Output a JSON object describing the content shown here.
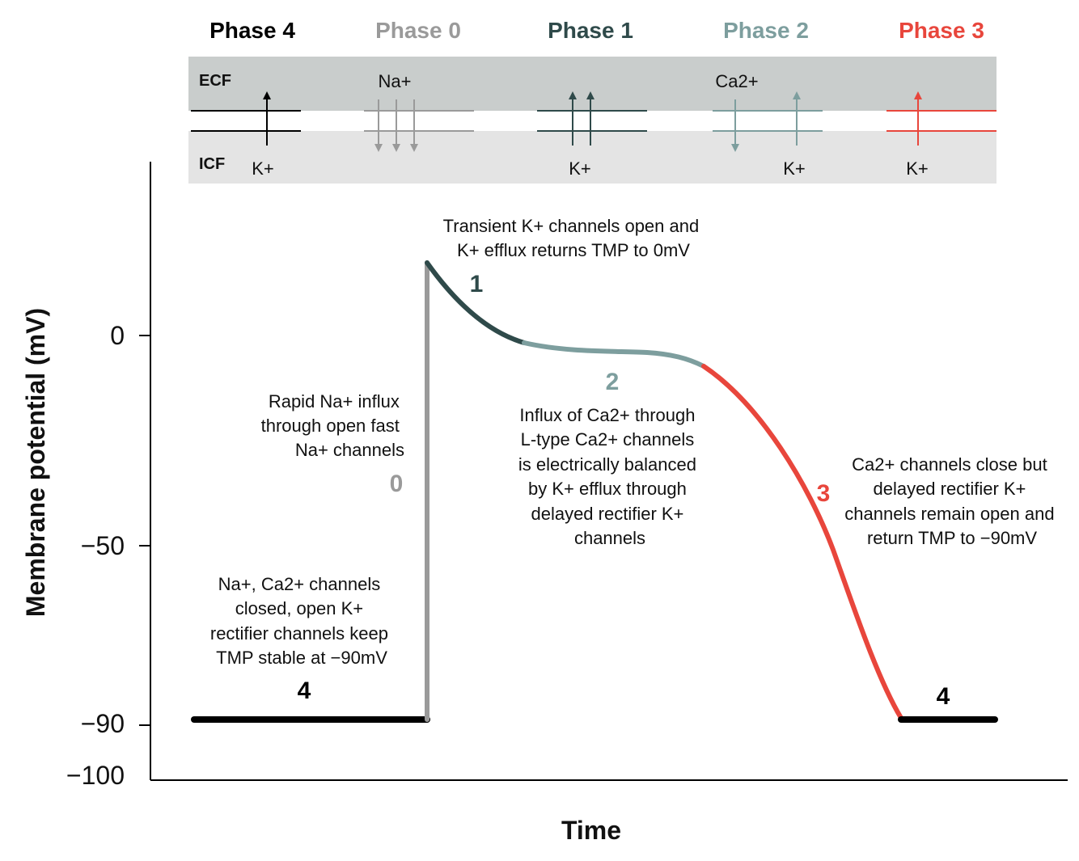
{
  "colors": {
    "phase4": "#000000",
    "phase0": "#9a9a9a",
    "phase1": "#2f4a4a",
    "phase2": "#7d9e9e",
    "phase3": "#e8463c",
    "ecf_band": "#c9cdcc",
    "icf_band": "#e4e4e4"
  },
  "header": {
    "phase4": "Phase 4",
    "phase0": "Phase 0",
    "phase1": "Phase 1",
    "phase2": "Phase 2",
    "phase3": "Phase 3"
  },
  "membrane": {
    "ecf": "ECF",
    "icf": "ICF",
    "na": "Na+",
    "ca": "Ca2+",
    "k_phase4": "K+",
    "k_phase1": "K+",
    "k_phase2": "K+",
    "k_phase3": "K+"
  },
  "axes": {
    "ylabel": "Membrane potential (mV)",
    "xlabel": "Time",
    "yticks": [
      "0",
      "−50",
      "−90",
      "−100"
    ]
  },
  "phase_numbers": {
    "p4_left": "4",
    "p0": "0",
    "p1": "1",
    "p2": "2",
    "p3": "3",
    "p4_right": "4"
  },
  "annotations": {
    "phase1": [
      "Transient K+ channels open and",
      "K+ efflux returns TMP to 0mV"
    ],
    "phase0": [
      "Rapid Na+ influx",
      "through open fast",
      "Na+ channels"
    ],
    "phase2": [
      "Influx of Ca2+ through",
      "L-type Ca2+ channels",
      "is electrically balanced",
      "by K+ efflux through",
      "delayed rectifier K+",
      "channels"
    ],
    "phase3": [
      "Ca2+ channels close but",
      "delayed rectifier K+",
      "channels remain open and",
      "return TMP to −90mV"
    ],
    "phase4": [
      "Na+, Ca2+ channels",
      "closed, open K+",
      "rectifier channels keep",
      "TMP stable at −90mV"
    ]
  }
}
